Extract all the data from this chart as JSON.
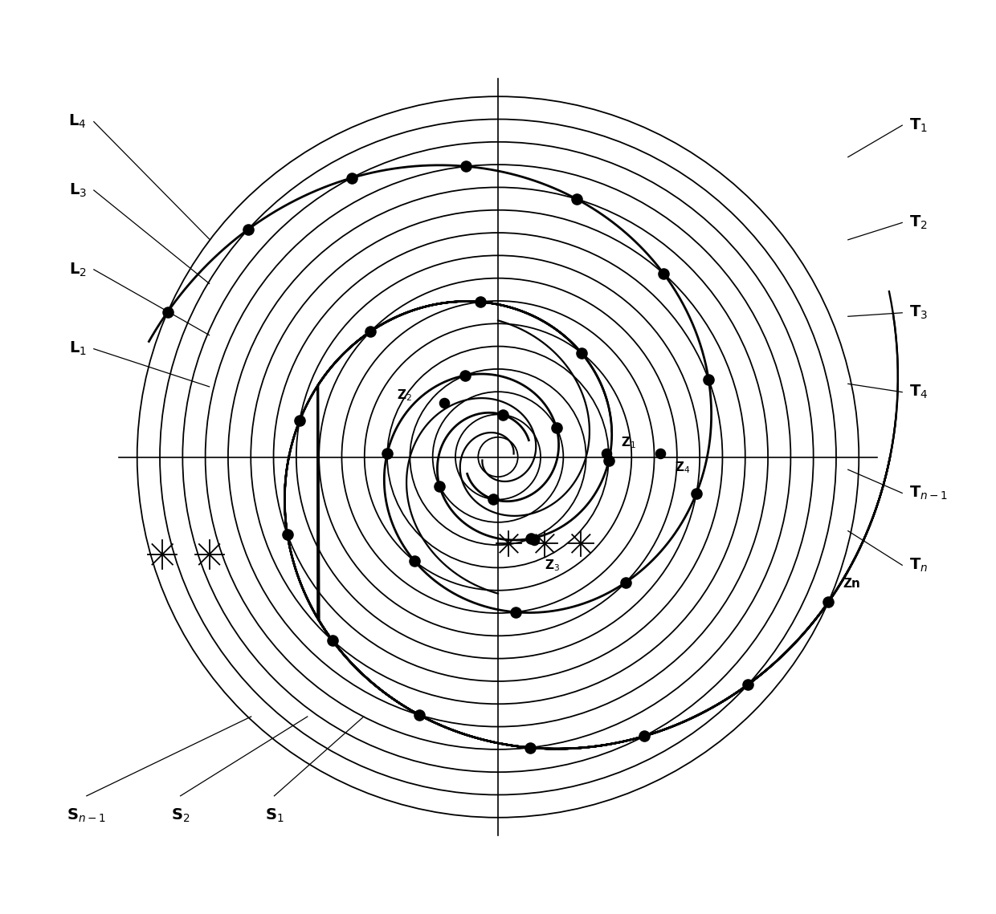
{
  "bg_color": "#ffffff",
  "line_color": "#000000",
  "num_circles": 16,
  "r_min": 0.055,
  "r_max": 1.0,
  "spiral_b": 0.115,
  "spiral_a": 0.052,
  "dot_size": 90,
  "lw_circle": 1.3,
  "lw_spiral": 2.0,
  "lw_axis": 1.2,
  "lw_inner": 1.6,
  "font_size_label": 14,
  "font_size_point": 11,
  "T_labels": [
    "T$_1$",
    "T$_2$",
    "T$_3$",
    "T$_4$",
    "T$_{n-1}$",
    "T$_n$"
  ],
  "L_labels": [
    "L$_1$",
    "L$_2$",
    "L$_3$",
    "L$_4$"
  ],
  "S_labels": [
    "S$_{n-1}$",
    "S$_2$",
    "S$_1$"
  ]
}
